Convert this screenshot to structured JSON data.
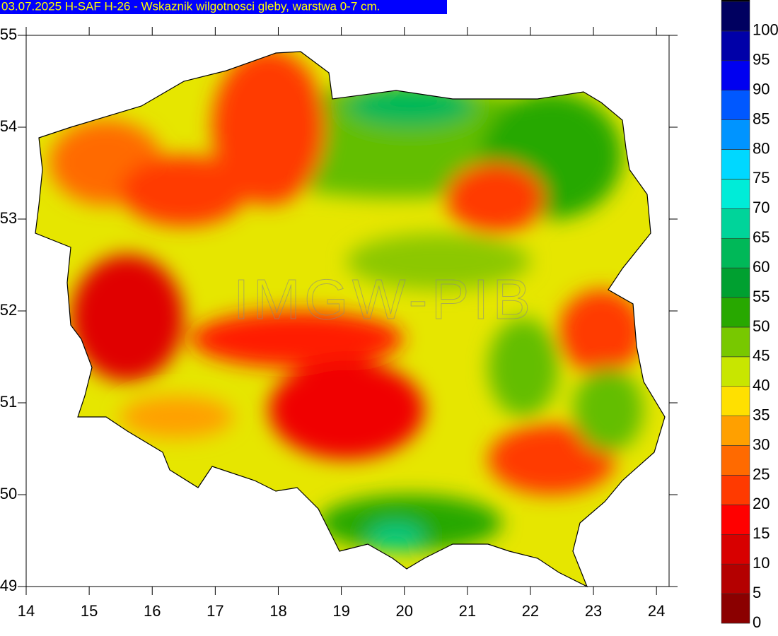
{
  "title": "03.07.2025 H-SAF H-26 - Wskaznik wilgotnosci gleby, warstwa 0-7 cm.",
  "map": {
    "xlim": [
      14,
      24.2
    ],
    "ylim": [
      49,
      55
    ],
    "xticks": [
      14,
      15,
      16,
      17,
      18,
      19,
      20,
      21,
      22,
      23,
      24
    ],
    "yticks": [
      49,
      50,
      51,
      52,
      53,
      54,
      55
    ],
    "watermark": "IMGW-PIB"
  },
  "colorbar": {
    "levels": [
      0,
      5,
      10,
      15,
      20,
      25,
      30,
      35,
      40,
      45,
      50,
      55,
      60,
      65,
      70,
      75,
      80,
      85,
      90,
      95,
      100
    ],
    "colors": [
      "#8b0000",
      "#b40000",
      "#d80000",
      "#ff0000",
      "#ff3a00",
      "#ff6a00",
      "#ffa000",
      "#ffe000",
      "#c8e600",
      "#78c800",
      "#28a800",
      "#00a030",
      "#00b858",
      "#00d49a",
      "#00ecd8",
      "#00d8ff",
      "#0094ff",
      "#0058ff",
      "#0000f0",
      "#0000a8",
      "#000060",
      "#000000"
    ]
  }
}
